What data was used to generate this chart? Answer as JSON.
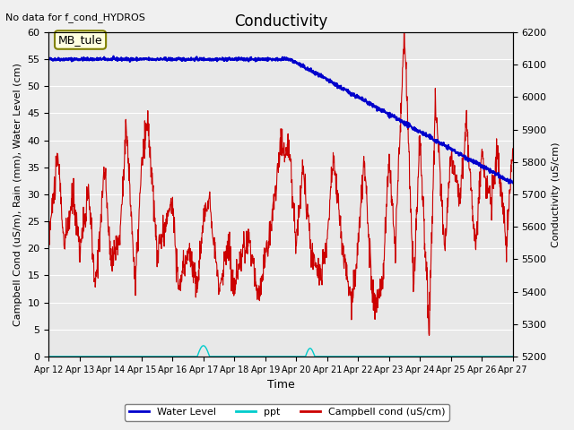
{
  "title": "Conductivity",
  "top_left_text": "No data for f_cond_HYDROS",
  "annotation_box": "MB_tule",
  "xlabel": "Time",
  "ylabel_left": "Campbell Cond (uS/m), Rain (mm), Water Level (cm)",
  "ylabel_right": "Conductivity (uS/cm)",
  "xlim": [
    0,
    15
  ],
  "ylim_left": [
    0,
    60
  ],
  "ylim_right": [
    5200,
    6200
  ],
  "background_color": "#e8e8e8",
  "x_ticks_labels": [
    "Apr 12",
    "Apr 13",
    "Apr 14",
    "Apr 15",
    "Apr 16",
    "Apr 17",
    "Apr 18",
    "Apr 19",
    "Apr 20",
    "Apr 21",
    "Apr 22",
    "Apr 23",
    "Apr 24",
    "Apr 25",
    "Apr 26",
    "Apr 27"
  ],
  "water_level_color": "#0000cc",
  "ppt_color": "#00cccc",
  "campbell_color": "#cc0000",
  "legend_entries": [
    "Water Level",
    "ppt",
    "Campbell cond (uS/cm)"
  ]
}
